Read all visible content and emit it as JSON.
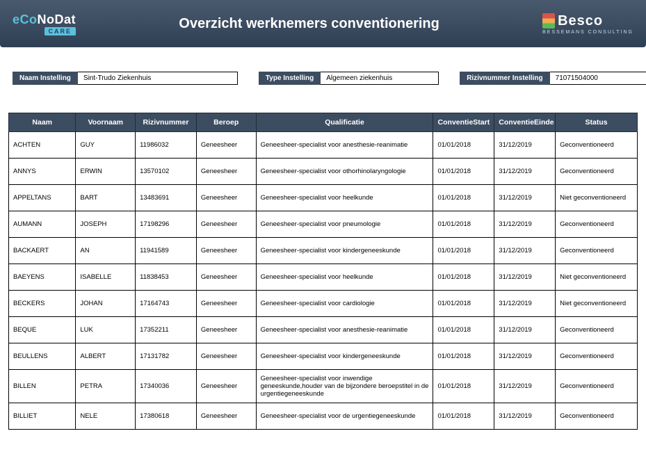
{
  "header": {
    "title": "Overzicht werknemers conventionering",
    "logo_left_main": "eCoNoDat",
    "logo_left_sub": "CARE",
    "logo_right_main": "Besco",
    "logo_right_sub": "BESSEMANS  CONSULTING"
  },
  "filters": {
    "naam_label": "Naam Instelling",
    "naam_value": "Sint-Trudo Ziekenhuis",
    "type_label": "Type Instelling",
    "type_value": "Algemeen ziekenhuis",
    "riziv_label": "Rizivnummer Instelling",
    "riziv_value": "71071504000"
  },
  "table": {
    "columns": [
      "Naam",
      "Voornaam",
      "Rizivnummer",
      "Beroep",
      "Qualificatie",
      "ConventieStart",
      "ConventieEinde",
      "Status"
    ],
    "rows": [
      {
        "naam": "ACHTEN",
        "voornaam": "GUY",
        "riziv": "11986032",
        "beroep": "Geneesheer",
        "qual": "Geneesheer-specialist voor anesthesie-reanimatie",
        "start": "01/01/2018",
        "einde": "31/12/2019",
        "status": "Geconventioneerd"
      },
      {
        "naam": "ANNYS",
        "voornaam": "ERWIN",
        "riziv": "13570102",
        "beroep": "Geneesheer",
        "qual": "Geneesheer-specialist voor othorhinolaryngologie",
        "start": "01/01/2018",
        "einde": "31/12/2019",
        "status": "Geconventioneerd"
      },
      {
        "naam": "APPELTANS",
        "voornaam": "BART",
        "riziv": "13483691",
        "beroep": "Geneesheer",
        "qual": "Geneesheer-specialist voor heelkunde",
        "start": "01/01/2018",
        "einde": "31/12/2019",
        "status": "Niet geconventioneerd"
      },
      {
        "naam": "AUMANN",
        "voornaam": "JOSEPH",
        "riziv": "17198296",
        "beroep": "Geneesheer",
        "qual": "Geneesheer-specialist voor pneumologie",
        "start": "01/01/2018",
        "einde": "31/12/2019",
        "status": "Geconventioneerd"
      },
      {
        "naam": "BACKAERT",
        "voornaam": "AN",
        "riziv": "11941589",
        "beroep": "Geneesheer",
        "qual": "Geneesheer-specialist voor kindergeneeskunde",
        "start": "01/01/2018",
        "einde": "31/12/2019",
        "status": "Geconventioneerd"
      },
      {
        "naam": "BAEYENS",
        "voornaam": "ISABELLE",
        "riziv": "11838453",
        "beroep": "Geneesheer",
        "qual": "Geneesheer-specialist voor heelkunde",
        "start": "01/01/2018",
        "einde": "31/12/2019",
        "status": "Niet geconventioneerd"
      },
      {
        "naam": "BECKERS",
        "voornaam": "JOHAN",
        "riziv": "17164743",
        "beroep": "Geneesheer",
        "qual": "Geneesheer-specialist voor cardiologie",
        "start": "01/01/2018",
        "einde": "31/12/2019",
        "status": "Niet geconventioneerd"
      },
      {
        "naam": "BEQUE",
        "voornaam": "LUK",
        "riziv": "17352211",
        "beroep": "Geneesheer",
        "qual": "Geneesheer-specialist voor anesthesie-reanimatie",
        "start": "01/01/2018",
        "einde": "31/12/2019",
        "status": "Geconventioneerd"
      },
      {
        "naam": "BEULLENS",
        "voornaam": "ALBERT",
        "riziv": "17131782",
        "beroep": "Geneesheer",
        "qual": "Geneesheer-specialist voor kindergeneeskunde",
        "start": "01/01/2018",
        "einde": "31/12/2019",
        "status": "Geconventioneerd"
      },
      {
        "naam": "BILLEN",
        "voornaam": "PETRA",
        "riziv": "17340036",
        "beroep": "Geneesheer",
        "qual": "Geneesheer-specialist voor inwendige geneeskunde,houder van de bijzondere beroepstitel in de urgentiegeneeskunde",
        "start": "01/01/2018",
        "einde": "31/12/2019",
        "status": "Geconventioneerd",
        "tall": true
      },
      {
        "naam": "BILLIET",
        "voornaam": "NELE",
        "riziv": "17380618",
        "beroep": "Geneesheer",
        "qual": "Geneesheer-specialist voor de urgentiegeneeskunde",
        "start": "01/01/2018",
        "einde": "31/12/2019",
        "status": "Geconventioneerd"
      }
    ]
  },
  "colors": {
    "header_bg": "#3d4d61",
    "accent": "#5bc0de"
  }
}
